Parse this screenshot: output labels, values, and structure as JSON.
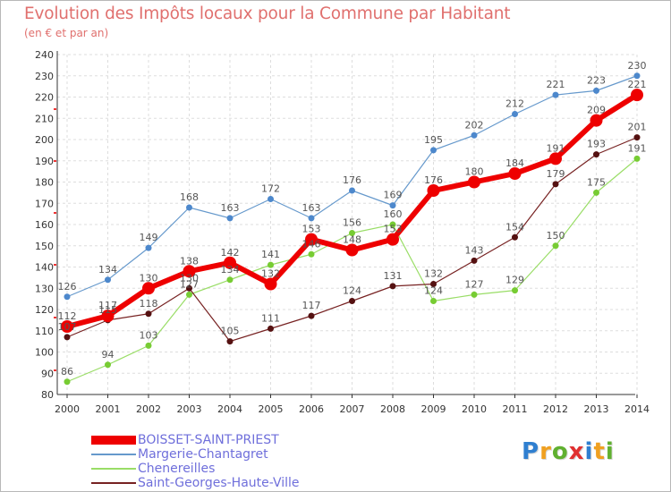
{
  "header": {
    "title": "Evolution des Impôts locaux pour la Commune par Habitant",
    "subtitle": "(en € et par an)"
  },
  "brand": {
    "letters": [
      "P",
      "r",
      "o",
      "x",
      "i",
      "t",
      "i"
    ],
    "colors": [
      "#2f7fd0",
      "#f0a020",
      "#60b030",
      "#e03030",
      "#2f7fd0",
      "#f0a020",
      "#60b030"
    ]
  },
  "chart_data": {
    "type": "line",
    "title": "Evolution des Impôts locaux pour la Commune par Habitant",
    "subtitle": "(en € et par an)",
    "xlabel": "",
    "ylabel": "",
    "x": [
      "2000",
      "2001",
      "2002",
      "2003",
      "2004",
      "2005",
      "2006",
      "2007",
      "2008",
      "2009",
      "2010",
      "2011",
      "2012",
      "2013",
      "2014"
    ],
    "ylim": [
      80,
      240
    ],
    "yticks": [
      "80",
      "90",
      "100",
      "110",
      "120",
      "130",
      "140",
      "150",
      "160",
      "170",
      "180",
      "190",
      "200",
      "210",
      "220",
      "230",
      "240"
    ],
    "grid": true,
    "legend_position": "bottom-left",
    "series": [
      {
        "name": "Margerie-Chantagret",
        "color": "#6699cc",
        "marker": "#4d88cc",
        "width": 1.2,
        "radius": 3.5,
        "values": [
          126,
          134,
          149,
          168,
          163,
          172,
          163,
          176,
          169,
          195,
          202,
          212,
          221,
          223,
          230
        ],
        "labels": [
          "126",
          "134",
          "149",
          "168",
          "163",
          "172",
          "163",
          "176",
          "169",
          "195",
          "202",
          "212",
          "221",
          "223",
          "230"
        ]
      },
      {
        "name": "Chenereilles",
        "color": "#99dd66",
        "marker": "#77cc33",
        "width": 1.2,
        "radius": 3.5,
        "values": [
          86,
          94,
          103,
          127,
          134,
          141,
          146,
          156,
          160,
          124,
          127,
          129,
          150,
          175,
          191
        ],
        "labels": [
          "86",
          "94",
          "103",
          "127",
          "134",
          "141",
          "146",
          "156",
          "160",
          "124",
          "127",
          "129",
          "150",
          "175",
          "191"
        ]
      },
      {
        "name": "Saint-Georges-Haute-Ville",
        "color": "#772222",
        "marker": "#551111",
        "width": 1.2,
        "radius": 3.5,
        "values": [
          107,
          115,
          118,
          130,
          105,
          111,
          117,
          124,
          131,
          132,
          143,
          154,
          179,
          193,
          201
        ],
        "labels": [
          "107",
          "115",
          "118",
          "130",
          "105",
          "111",
          "117",
          "124",
          "131",
          "132",
          "143",
          "154",
          "179",
          "193",
          "201"
        ]
      },
      {
        "name": "BOISSET-SAINT-PRIEST",
        "color": "#ee0000",
        "marker": "#ee0000",
        "width": 6,
        "radius": 7,
        "values": [
          112,
          117,
          130,
          138,
          142,
          132,
          153,
          148,
          153,
          176,
          180,
          184,
          191,
          209,
          221
        ],
        "labels": [
          "112",
          "117",
          "130",
          "138",
          "142",
          "132",
          "153",
          "148",
          "153",
          "176",
          "180",
          "184",
          "191",
          "209",
          "221"
        ]
      }
    ]
  }
}
